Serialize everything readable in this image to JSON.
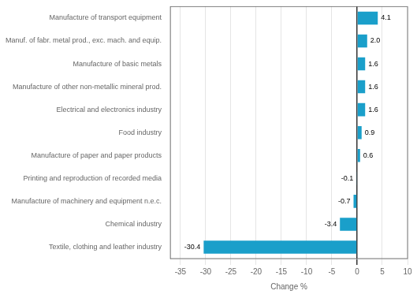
{
  "chart_data": {
    "type": "bar",
    "orientation": "horizontal",
    "categories": [
      "Textile, clothing and leather industry",
      "Chemical industry",
      "Manufacture of machinery and equipment n.e.c.",
      "Printing and reproduction of recorded media",
      "Manufacture of paper and paper products",
      "Food industry",
      "Electrical and electronics industry",
      "Manufacture of other non-metallic mineral prod.",
      "Manufacture of basic metals",
      "Manuf. of fabr. metal prod., exc. mach. and equip.",
      "Manufacture of transport equipment"
    ],
    "values": [
      -30.4,
      -3.4,
      -0.7,
      -0.1,
      0.6,
      0.9,
      1.6,
      1.6,
      1.6,
      2.0,
      4.1
    ],
    "value_labels": [
      "-30.4",
      "-3.4",
      "-0.7",
      "-0.1",
      "0.6",
      "0.9",
      "1.6",
      "1.6",
      "1.6",
      "2.0",
      "4.1"
    ],
    "data_labels": true,
    "color": "#1a9fca",
    "xlim": [
      -37,
      10
    ],
    "xticks": [
      -35,
      -30,
      -25,
      -20,
      -15,
      -10,
      -5,
      0,
      5,
      10
    ],
    "xlabel": "Change %",
    "grid": true
  }
}
